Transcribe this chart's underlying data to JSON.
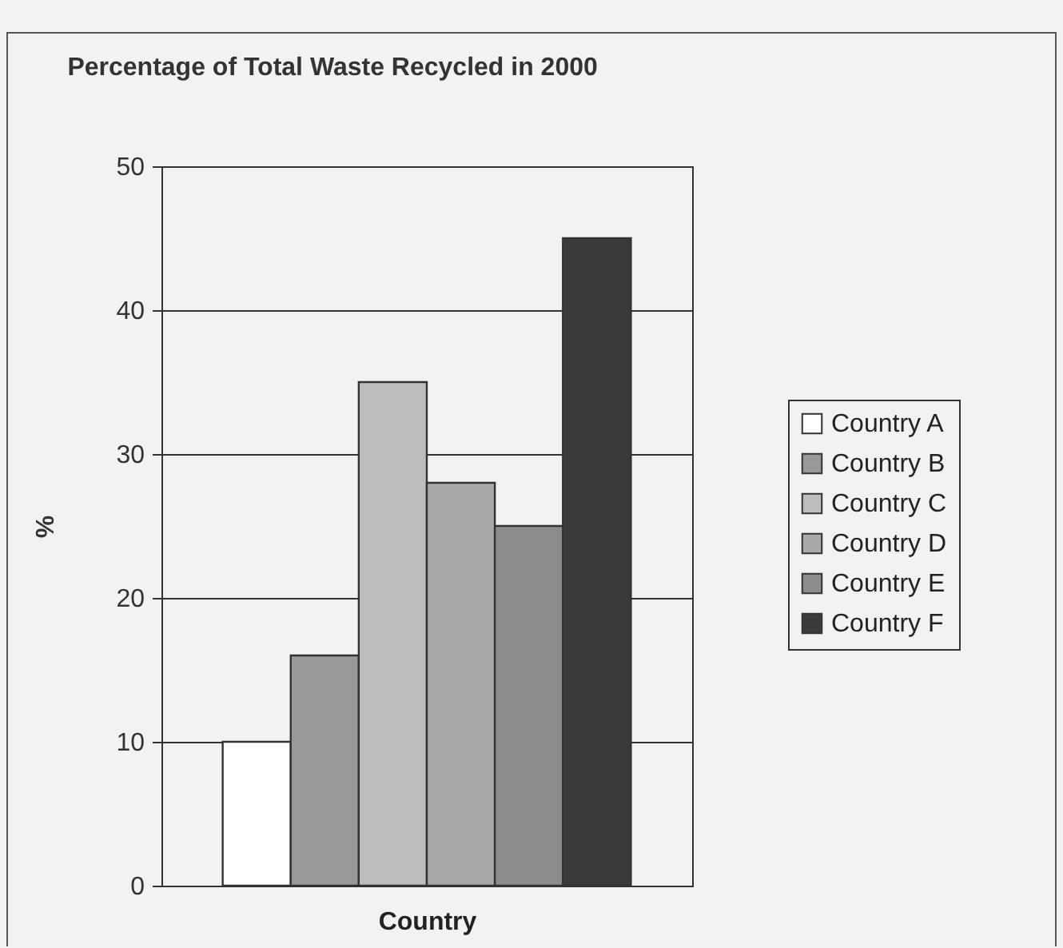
{
  "chart_data": {
    "type": "bar",
    "title": "Percentage of Total Waste Recycled in 2000",
    "xlabel": "Country",
    "ylabel": "%",
    "categories": [
      null
    ],
    "series": [
      {
        "name": "Country A",
        "color": "#ffffff",
        "values": [
          10
        ]
      },
      {
        "name": "Country B",
        "color": "#999999",
        "values": [
          16
        ]
      },
      {
        "name": "Country C",
        "color": "#bdbdbd",
        "values": [
          35
        ]
      },
      {
        "name": "Country D",
        "color": "#a9a9a9",
        "values": [
          28
        ]
      },
      {
        "name": "Country E",
        "color": "#8c8c8c",
        "values": [
          25
        ]
      },
      {
        "name": "Country F",
        "color": "#3a3a3a",
        "values": [
          45
        ]
      }
    ],
    "ylim": [
      0,
      50
    ],
    "yticks": [
      0,
      10,
      20,
      30,
      40,
      50
    ],
    "grid": "y",
    "legend": "right",
    "tick_labels": "y"
  }
}
